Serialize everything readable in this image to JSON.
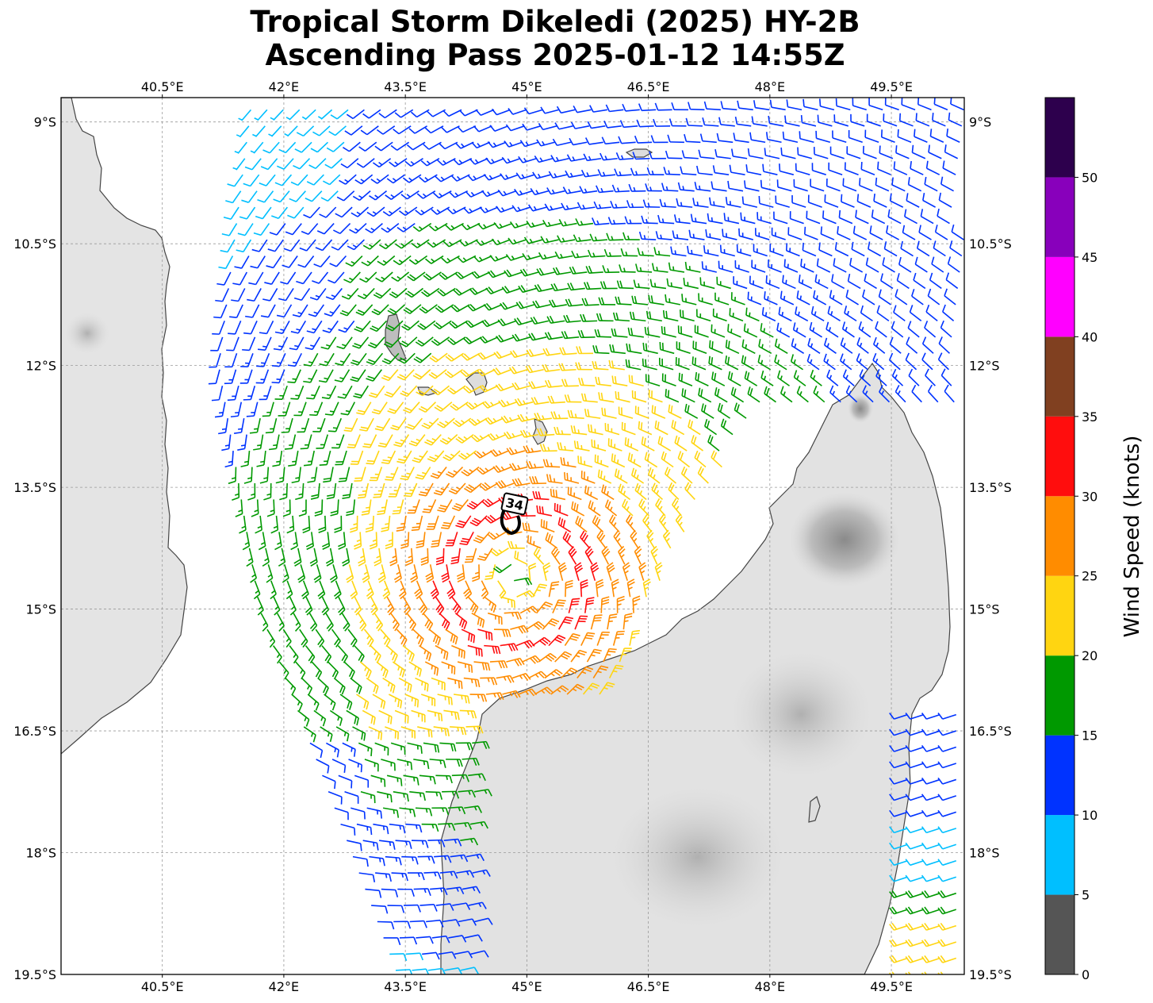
{
  "title_line1": "Tropical Storm Dikeledi (2025) HY-2B",
  "title_line2": "Ascending Pass 2025-01-12 14:55Z",
  "map": {
    "lon_range": [
      39.25,
      50.4
    ],
    "lat_range": [
      -19.5,
      -8.7
    ],
    "lon_ticks": [
      "40.5°E",
      "42°E",
      "43.5°E",
      "45°E",
      "46.5°E",
      "48°E",
      "49.5°E"
    ],
    "lat_ticks": [
      "9°S",
      "10.5°S",
      "12°S",
      "13.5°S",
      "15°S",
      "16.5°S",
      "18°S",
      "19.5°S"
    ],
    "gridlines": true,
    "center_marker_label": "34",
    "center_marker_position": {
      "lon": 44.8,
      "lat": -13.7
    },
    "land_color": "#e6e6e6",
    "ocean_color": "#ffffff",
    "coastline_color": "#444444"
  },
  "colorbar": {
    "label": "Wind Speed (knots)",
    "ticks": [
      "0",
      "5",
      "10",
      "15",
      "20",
      "25",
      "30",
      "35",
      "40",
      "45",
      "50"
    ],
    "bins": [
      {
        "from": 0,
        "to": 5,
        "color": "#555555"
      },
      {
        "from": 5,
        "to": 10,
        "color": "#00bfff"
      },
      {
        "from": 10,
        "to": 15,
        "color": "#0033ff"
      },
      {
        "from": 15,
        "to": 20,
        "color": "#009900"
      },
      {
        "from": 20,
        "to": 25,
        "color": "#ffd511"
      },
      {
        "from": 25,
        "to": 30,
        "color": "#ff8c00"
      },
      {
        "from": 30,
        "to": 35,
        "color": "#ff0d0d"
      },
      {
        "from": 35,
        "to": 40,
        "color": "#804020"
      },
      {
        "from": 40,
        "to": 45,
        "color": "#ff00ff"
      },
      {
        "from": 45,
        "to": 50,
        "color": "#8800bb"
      },
      {
        "from": 50,
        "to": 55,
        "color": "#2d004d"
      }
    ]
  },
  "wind_field": {
    "center": {
      "lon": 44.85,
      "lat": -14.6
    },
    "swath_west_edge": [
      [
        41.6,
        -8.8
      ],
      [
        41.2,
        -12.0
      ],
      [
        41.7,
        -15.0
      ],
      [
        43.4,
        -19.5
      ]
    ],
    "swath_east_edge": [
      [
        50.4,
        -8.8
      ],
      [
        50.4,
        -12.5
      ]
    ],
    "south_east_segment_lon": [
      49.7,
      50.4
    ],
    "south_east_segment_lat": [
      -16.3,
      -19.5
    ]
  }
}
